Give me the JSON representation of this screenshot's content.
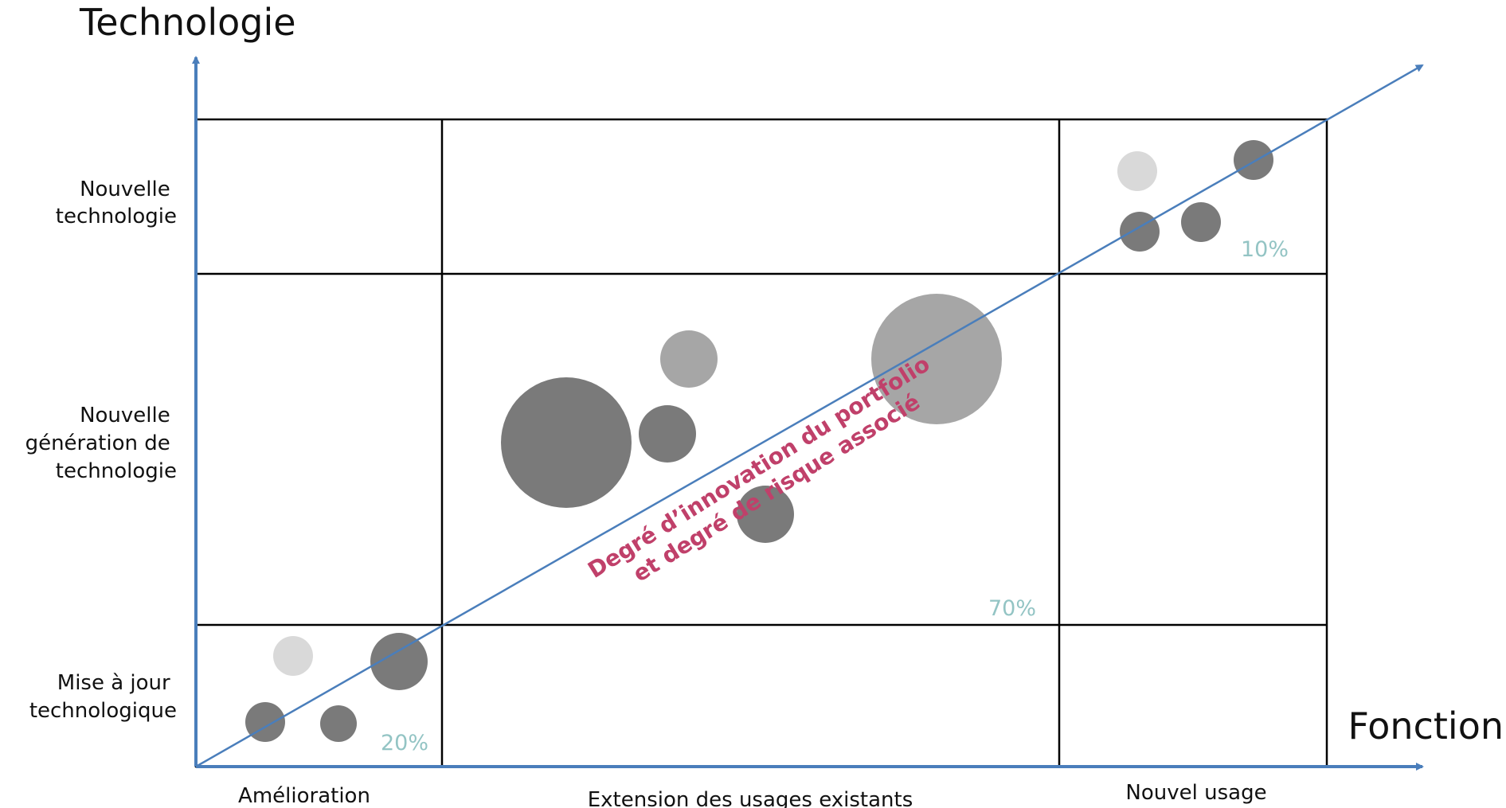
{
  "axes": {
    "y_title": "Technologie",
    "x_title": "Fonction"
  },
  "rows": [
    [
      "Nouvelle",
      "technologie"
    ],
    [
      "Nouvelle",
      "génération de",
      "technologie"
    ],
    [
      "Mise à jour",
      "technologique"
    ]
  ],
  "columns": [
    "Amélioration",
    "Extension des usages existants",
    "Nouvel usage"
  ],
  "percentages": [
    "10%",
    "70%",
    "20%"
  ],
  "diagonal_label": [
    "Degré d’innovation du portfolio",
    "et degré de risque associé"
  ],
  "colors": {
    "axis": "#4a7ebb",
    "grid": "#000000",
    "bubble_dark": "#7a7a7a",
    "bubble_mid": "#a6a6a6",
    "bubble_light": "#d9d9d9",
    "percent": "#93c4c4",
    "diagonal_text": "#c0406a"
  },
  "bubbles": [
    {
      "shade": "light"
    },
    {
      "shade": "dark"
    },
    {
      "shade": "dark"
    },
    {
      "shade": "dark"
    },
    {
      "shade": "mid"
    },
    {
      "shade": "dark"
    },
    {
      "shade": "dark"
    },
    {
      "shade": "dark"
    },
    {
      "shade": "mid"
    },
    {
      "shade": "light"
    },
    {
      "shade": "dark"
    },
    {
      "shade": "dark"
    },
    {
      "shade": "dark"
    }
  ]
}
